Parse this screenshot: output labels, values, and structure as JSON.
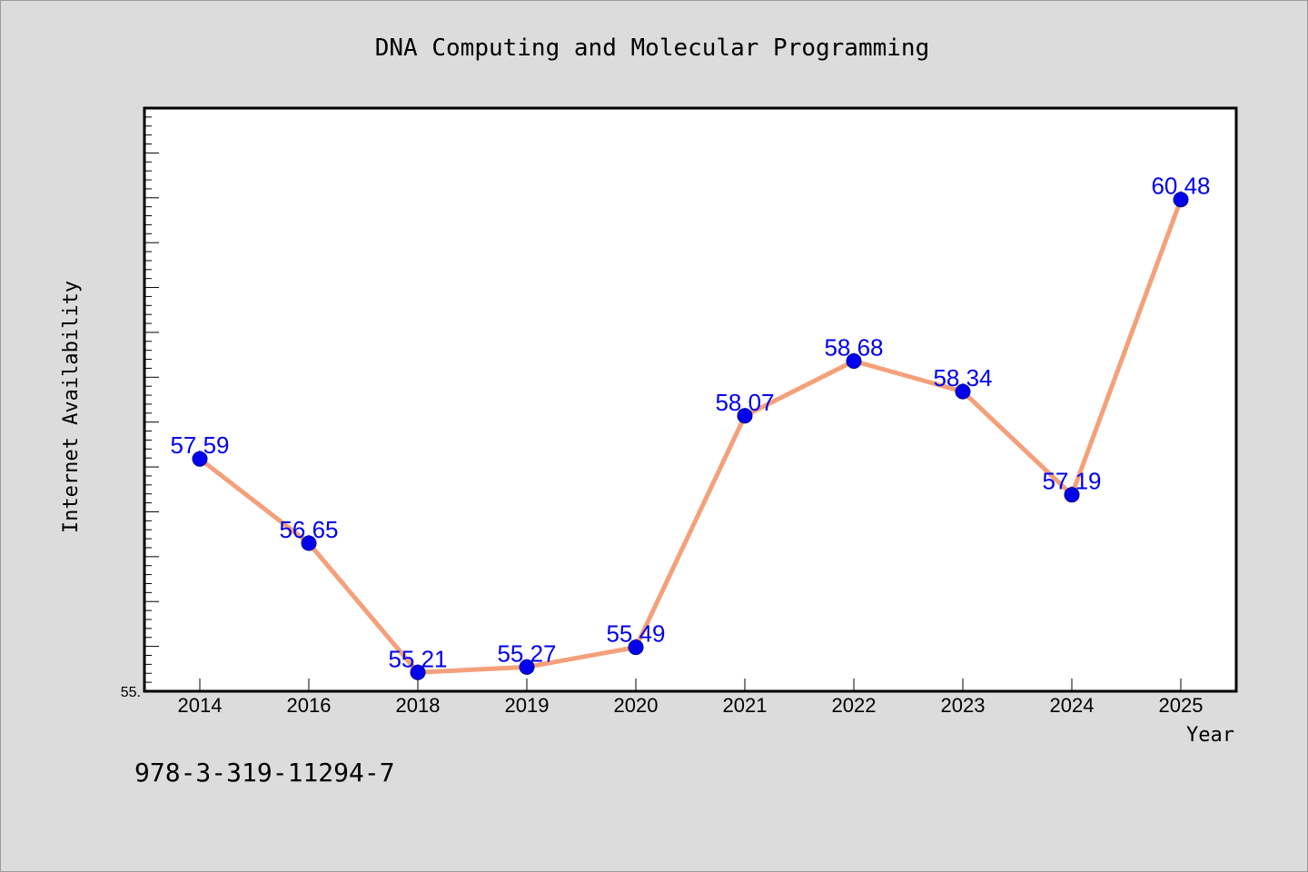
{
  "chart_data": {
    "type": "line",
    "title": "DNA Computing and Molecular Programming",
    "xlabel": "Year",
    "ylabel": "Internet Availability",
    "categories": [
      "2014",
      "2016",
      "2018",
      "2019",
      "2020",
      "2021",
      "2022",
      "2023",
      "2024",
      "2025"
    ],
    "series": [
      {
        "values": [
          57.59,
          56.65,
          55.21,
          55.27,
          55.49,
          58.07,
          58.68,
          58.34,
          57.19,
          60.48
        ],
        "data_labels": [
          "57.59",
          "56.65",
          "55.21",
          "55.27",
          "55.49",
          "58.07",
          "58.68",
          "58.34",
          "57.19",
          "60.48"
        ]
      }
    ],
    "ylim": [
      55.0,
      61.5
    ],
    "ytick_label": "55.",
    "grid": false,
    "line_color": "#f4a07a",
    "marker_color": "#0000ee",
    "label_color": "#0000ee"
  },
  "footnote": "978-3-319-11294-7"
}
